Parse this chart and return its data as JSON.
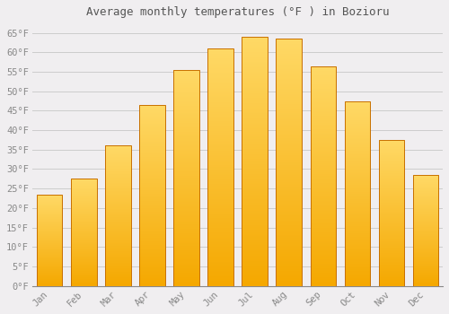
{
  "title": "Average monthly temperatures (°F ) in Bozioru",
  "months": [
    "Jan",
    "Feb",
    "Mar",
    "Apr",
    "May",
    "Jun",
    "Jul",
    "Aug",
    "Sep",
    "Oct",
    "Nov",
    "Dec"
  ],
  "values": [
    23.5,
    27.5,
    36.0,
    46.5,
    55.5,
    61.0,
    64.0,
    63.5,
    56.5,
    47.5,
    37.5,
    28.5
  ],
  "bar_color_bottom": "#F5A800",
  "bar_color_top": "#FFD966",
  "bar_edge_color": "#C87000",
  "background_color": "#F0EEF0",
  "plot_background": "#F0EEF0",
  "grid_color": "#CCCCCC",
  "text_color": "#888888",
  "title_color": "#555555",
  "ylim": [
    0,
    67
  ],
  "ytick_step": 5,
  "bar_width": 0.75
}
